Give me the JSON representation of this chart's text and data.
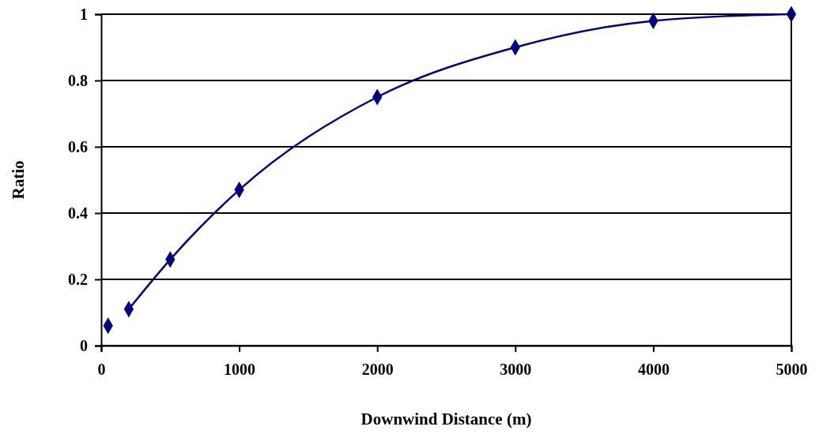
{
  "chart_data": {
    "type": "scatter",
    "xlabel": "Downwind Distance (m)",
    "ylabel": "Ratio",
    "xlim": [
      0,
      5000
    ],
    "ylim": [
      0,
      1
    ],
    "xticks": [
      0,
      1000,
      2000,
      3000,
      4000,
      5000
    ],
    "yticks": [
      0,
      0.2,
      0.4,
      0.6,
      0.8,
      1
    ],
    "grid": "y",
    "marker": "diamond",
    "series": [
      {
        "color": "#000080",
        "x": [
          50,
          200,
          500,
          1000,
          2000,
          3000,
          4000,
          5000
        ],
        "values": [
          0.06,
          0.11,
          0.26,
          0.47,
          0.75,
          0.9,
          0.98,
          1
        ]
      },
      {
        "type": "line",
        "color": "#000080",
        "marker": "none",
        "line_style": "solid",
        "x": [
          200,
          500,
          1000,
          2000,
          3000,
          4000,
          5000
        ],
        "values": [
          0.11,
          0.26,
          0.47,
          0.75,
          0.9,
          0.98,
          1
        ]
      }
    ]
  }
}
